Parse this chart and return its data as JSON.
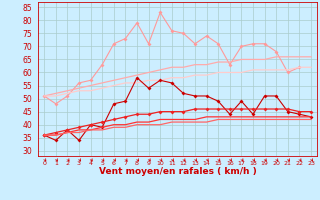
{
  "xlabel": "Vent moyen/en rafales ( km/h )",
  "x": [
    0,
    1,
    2,
    3,
    4,
    5,
    6,
    7,
    8,
    9,
    10,
    11,
    12,
    13,
    14,
    15,
    16,
    17,
    18,
    19,
    20,
    21,
    22,
    23
  ],
  "series": [
    {
      "name": "rafales_light1",
      "color": "#ff9999",
      "lw": 0.8,
      "marker": "D",
      "ms": 2.0,
      "values": [
        51,
        48,
        51,
        56,
        57,
        63,
        71,
        73,
        79,
        71,
        83,
        76,
        75,
        71,
        74,
        71,
        63,
        70,
        71,
        71,
        68,
        60,
        62,
        null
      ]
    },
    {
      "name": "rafales_trend1",
      "color": "#ffaaaa",
      "lw": 0.9,
      "marker": null,
      "ms": 0,
      "values": [
        51,
        52,
        53,
        54,
        55,
        56,
        57,
        58,
        59,
        60,
        61,
        62,
        62,
        63,
        63,
        64,
        64,
        65,
        65,
        65,
        66,
        66,
        66,
        66
      ]
    },
    {
      "name": "rafales_trend2",
      "color": "#ffcccc",
      "lw": 0.9,
      "marker": null,
      "ms": 0,
      "values": [
        51,
        51,
        52,
        53,
        53,
        54,
        55,
        56,
        56,
        57,
        57,
        58,
        58,
        59,
        59,
        60,
        60,
        60,
        61,
        61,
        61,
        61,
        62,
        62
      ]
    },
    {
      "name": "vent_jagged",
      "color": "#cc0000",
      "lw": 0.8,
      "marker": "D",
      "ms": 2.0,
      "values": [
        36,
        34,
        38,
        34,
        40,
        39,
        48,
        49,
        58,
        54,
        57,
        56,
        52,
        51,
        51,
        49,
        44,
        49,
        44,
        51,
        51,
        45,
        44,
        43
      ]
    },
    {
      "name": "vent_trend1",
      "color": "#ee2222",
      "lw": 0.9,
      "marker": "D",
      "ms": 2.0,
      "values": [
        36,
        37,
        38,
        39,
        40,
        41,
        42,
        43,
        44,
        44,
        45,
        45,
        45,
        46,
        46,
        46,
        46,
        46,
        46,
        46,
        46,
        46,
        45,
        45
      ]
    },
    {
      "name": "vent_trend2",
      "color": "#ff3333",
      "lw": 0.9,
      "marker": null,
      "ms": 0,
      "values": [
        36,
        36,
        37,
        38,
        38,
        39,
        40,
        40,
        41,
        41,
        42,
        42,
        42,
        42,
        43,
        43,
        43,
        43,
        43,
        43,
        43,
        43,
        43,
        43
      ]
    },
    {
      "name": "vent_trend3",
      "color": "#ff6666",
      "lw": 0.9,
      "marker": null,
      "ms": 0,
      "values": [
        36,
        36,
        37,
        37,
        38,
        38,
        39,
        39,
        40,
        40,
        40,
        41,
        41,
        41,
        41,
        42,
        42,
        42,
        42,
        42,
        42,
        42,
        42,
        42
      ]
    }
  ],
  "ylim": [
    28,
    87
  ],
  "yticks": [
    30,
    35,
    40,
    45,
    50,
    55,
    60,
    65,
    70,
    75,
    80,
    85
  ],
  "xlim": [
    -0.5,
    23.5
  ],
  "bg_color": "#cceeff",
  "grid_color": "#aacccc",
  "tick_color": "#cc0000",
  "label_color": "#cc0000"
}
